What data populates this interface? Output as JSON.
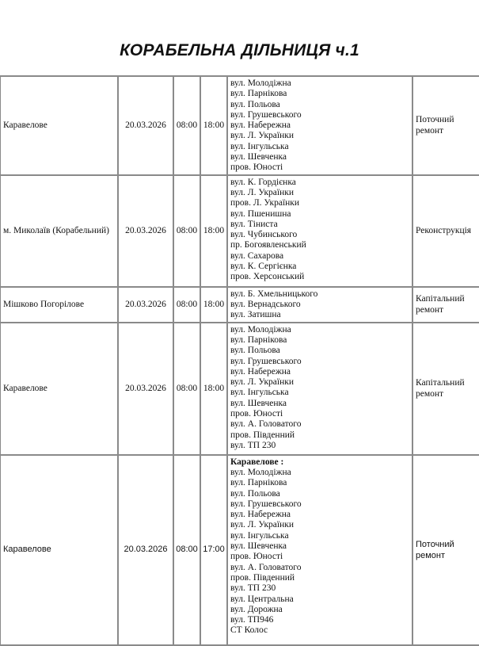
{
  "title": "КОРАБЕЛЬНА ДІЛЬНИЦЯ ч.1",
  "rows": [
    {
      "place": "Каравелове",
      "date": "20.03.2026",
      "start": "08:00",
      "end": "18:00",
      "header": "",
      "streets": [
        "вул. Молодіжна",
        "вул. Парнікова",
        "вул. Польова",
        "вул. Грушевського",
        "вул. Набережна",
        "вул. Л. Українки",
        "вул. Інгульська",
        "вул. Шевченка",
        "пров. Юності"
      ],
      "type": "Поточний ремонт"
    },
    {
      "place": "м. Миколаїв (Корабельний)",
      "date": "20.03.2026",
      "start": "08:00",
      "end": "18:00",
      "header": "",
      "streets": [
        "вул. К. Гордієнка",
        "вул. Л. Українки",
        "пров. Л. Українки",
        "вул. Пшенишна",
        "вул. Тіниста",
        "вул. Чубинського",
        "пр. Богоявленський",
        "вул. Сахарова",
        "вул. К. Сергієнка",
        "пров. Херсонський"
      ],
      "type": "Реконструкція"
    },
    {
      "place": "Мішково Погорілове",
      "date": "20.03.2026",
      "start": "08:00",
      "end": "18:00",
      "header": "",
      "streets": [
        "вул. Б. Хмельницького",
        "вул. Вернадського",
        "вул. Затишна"
      ],
      "type": "Капітальний ремонт"
    },
    {
      "place": "Каравелове",
      "date": "20.03.2026",
      "start": "08:00",
      "end": "18:00",
      "header": "",
      "streets": [
        "вул. Молодіжна",
        "вул. Парнікова",
        "вул. Польова",
        "вул. Грушевського",
        "вул. Набережна",
        "вул. Л. Українки",
        "вул. Інгульська",
        "вул. Шевченка",
        "пров. Юності",
        "вул. А. Головатого",
        "пров. Південний",
        "вул. ТП 230"
      ],
      "type": "Капітальний ремонт"
    },
    {
      "place": "Каравелове",
      "date": "20.03.2026",
      "start": "08:00",
      "end": "17:00",
      "header": "Каравелове :",
      "streets": [
        "вул. Молодіжна",
        "вул. Парнікова",
        "вул. Польова",
        "вул. Грушевського",
        "вул. Набережна",
        "вул. Л. Українки",
        "вул. Інгульська",
        "вул. Шевченка",
        "пров. Юності",
        "вул. А. Головатого",
        "пров. Південний",
        "вул. ТП 230",
        "вул. Центральна",
        "вул. Дорожна",
        "вул. ТП946",
        "СТ Колос"
      ],
      "type": "Поточний ремонт"
    }
  ]
}
